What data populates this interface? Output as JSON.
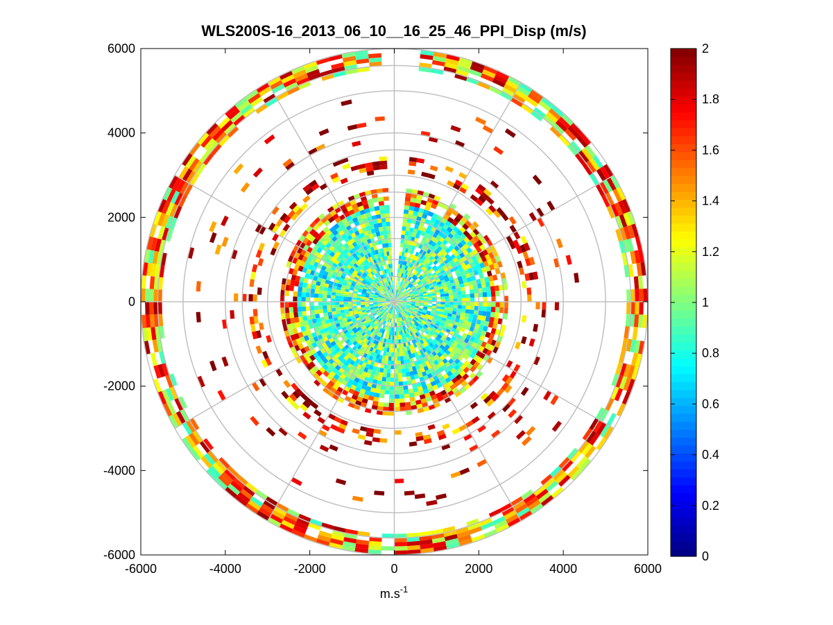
{
  "chart_data": {
    "type": "heatmap",
    "subtype": "polar-ppi",
    "title": "WLS200S-16_2013_06_10__16_25_46_PPI_Disp (m/s)",
    "xlabel": "m.s",
    "xlabel_superscript": "-1",
    "ylabel": "",
    "xlim": [
      -6000,
      6000
    ],
    "ylim": [
      -6000,
      6000
    ],
    "xticks": [
      -6000,
      -4000,
      -2000,
      0,
      2000,
      4000,
      6000
    ],
    "yticks": [
      6000,
      4000,
      2000,
      0,
      -2000,
      -4000,
      -6000
    ],
    "xtick_labels": [
      "-6000",
      "-4000",
      "-2000",
      "0",
      "2000",
      "4000",
      "6000"
    ],
    "ytick_labels": [
      "6000",
      "4000",
      "2000",
      "0",
      "-2000",
      "-4000",
      "-6000"
    ],
    "polar_grid_rings_m": [
      600,
      1000,
      1500,
      2000,
      2600,
      3000,
      3600,
      4000,
      5000,
      5600,
      6000
    ],
    "polar_grid_spokes_deg": [
      0,
      30,
      60,
      90,
      120,
      150,
      180,
      210,
      240,
      270,
      300,
      330
    ],
    "colorbar": {
      "colormap": "jet",
      "clim": [
        0,
        2
      ],
      "tick_values": [
        0,
        0.2,
        0.4,
        0.6,
        0.8,
        1,
        1.2,
        1.4,
        1.6,
        1.8,
        2
      ],
      "tick_labels": [
        "0",
        "0.2",
        "0.4",
        "0.6",
        "0.8",
        "1",
        "1.2",
        "1.4",
        "1.6",
        "1.8",
        "2"
      ]
    },
    "value_regions": [
      {
        "name": "inner-disc",
        "r_range_m": [
          0,
          2300
        ],
        "typical_value": 0.9,
        "spread": 0.35,
        "coverage": 0.95
      },
      {
        "name": "inner-disc-edge",
        "r_range_m": [
          2300,
          2650
        ],
        "typical_value": 1.5,
        "spread": 0.5,
        "coverage": 0.8
      },
      {
        "name": "ring-3km",
        "r_range_m": [
          3050,
          3450
        ],
        "typical_value": 1.7,
        "spread": 0.5,
        "coverage": 0.35
      },
      {
        "name": "mid-sparse",
        "r_range_m": [
          3500,
          5000
        ],
        "typical_value": 1.8,
        "spread": 0.4,
        "coverage": 0.05
      },
      {
        "name": "outer-ring",
        "r_range_m": [
          5500,
          6000
        ],
        "typical_value": 1.4,
        "spread": 0.55,
        "coverage": 0.85
      }
    ],
    "no_data_gap_azimuth_deg": [
      -5,
      5
    ]
  }
}
